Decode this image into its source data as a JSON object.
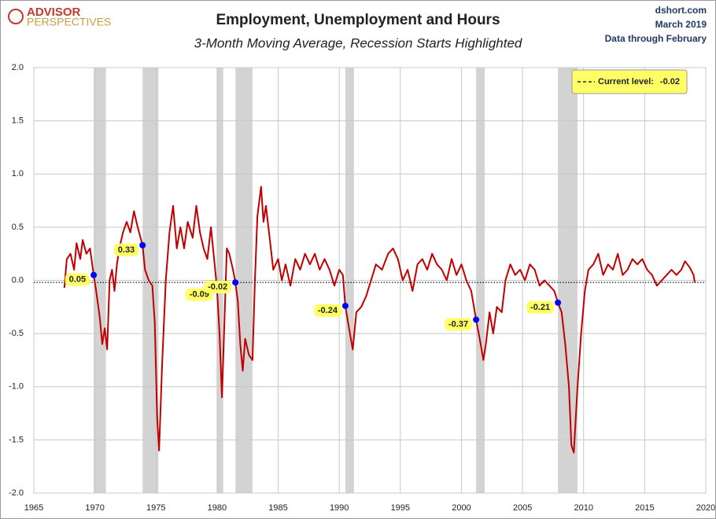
{
  "brand": {
    "line1": "ADVISOR",
    "line2": "PERSPECTIVES"
  },
  "source": [
    "dshort.com",
    "March 2019",
    "Data through February"
  ],
  "chart_data": {
    "type": "line",
    "title": "Employment, Unemployment and Hours",
    "subtitle": "3-Month Moving Average, Recession Starts Highlighted",
    "color": "#c00000",
    "xlim": [
      1965,
      2020
    ],
    "xticks": [
      1965,
      1970,
      1975,
      1980,
      1985,
      1990,
      1995,
      2000,
      2005,
      2010,
      2015,
      2020
    ],
    "ylim": [
      -2,
      2
    ],
    "yticks": [
      {
        "value": 2,
        "label": "2.0"
      },
      1.5,
      {
        "value": 1,
        "label": "1.0"
      },
      0.5,
      {
        "value": 0,
        "label": "0.0"
      },
      -0.5,
      {
        "value": -1,
        "label": "-1.0"
      },
      -1.5,
      {
        "value": -2,
        "label": "-2.0"
      }
    ],
    "grid": true,
    "recessions": [
      [
        1969.9,
        1970.9
      ],
      [
        1973.9,
        1975.2
      ],
      [
        1980.0,
        1980.5
      ],
      [
        1981.5,
        1982.9
      ],
      [
        1990.5,
        1991.2
      ],
      [
        2001.2,
        2001.9
      ],
      [
        2007.9,
        2009.5
      ]
    ],
    "recession_starts": {
      "x": [
        1969.9,
        1973.9,
        1980.0,
        1981.5,
        1990.5,
        2001.2,
        2007.9
      ],
      "values": [
        0.05,
        0.33,
        -0.09,
        -0.02,
        -0.24,
        -0.37,
        -0.21
      ],
      "color": "#0000ff",
      "label_color": "#ffff66"
    },
    "current_level_label": "Current level:",
    "current_level": -0.02,
    "x": [
      1967.5,
      1967.7,
      1968.0,
      1968.3,
      1968.5,
      1968.8,
      1969.0,
      1969.3,
      1969.6,
      1969.9,
      1970.1,
      1970.4,
      1970.6,
      1970.8,
      1971.0,
      1971.2,
      1971.4,
      1971.6,
      1971.8,
      1972.0,
      1972.3,
      1972.6,
      1972.9,
      1973.2,
      1973.5,
      1973.9,
      1974.1,
      1974.4,
      1974.7,
      1974.9,
      1975.1,
      1975.25,
      1975.5,
      1975.8,
      1976.1,
      1976.4,
      1976.7,
      1977.0,
      1977.3,
      1977.6,
      1978.0,
      1978.3,
      1978.6,
      1978.9,
      1979.2,
      1979.5,
      1979.8,
      1980.0,
      1980.2,
      1980.4,
      1980.6,
      1980.8,
      1981.0,
      1981.3,
      1981.5,
      1981.7,
      1981.9,
      1982.1,
      1982.3,
      1982.6,
      1982.9,
      1983.1,
      1983.3,
      1983.6,
      1983.8,
      1984.0,
      1984.3,
      1984.6,
      1985.0,
      1985.3,
      1985.6,
      1986.0,
      1986.4,
      1986.8,
      1987.2,
      1987.6,
      1988.0,
      1988.4,
      1988.8,
      1989.2,
      1989.6,
      1990.0,
      1990.3,
      1990.5,
      1990.8,
      1991.1,
      1991.4,
      1991.8,
      1992.2,
      1992.6,
      1993.0,
      1993.5,
      1994.0,
      1994.4,
      1994.8,
      1995.2,
      1995.6,
      1996.0,
      1996.4,
      1996.8,
      1997.2,
      1997.6,
      1998.0,
      1998.4,
      1998.8,
      1999.2,
      1999.6,
      2000.0,
      2000.4,
      2000.8,
      2001.2,
      2001.5,
      2001.8,
      2002.0,
      2002.3,
      2002.6,
      2002.9,
      2003.3,
      2003.6,
      2004.0,
      2004.4,
      2004.8,
      2005.2,
      2005.6,
      2006.0,
      2006.4,
      2006.8,
      2007.2,
      2007.6,
      2007.9,
      2008.2,
      2008.5,
      2008.8,
      2009.0,
      2009.2,
      2009.5,
      2009.8,
      2010.1,
      2010.4,
      2010.8,
      2011.2,
      2011.6,
      2012.0,
      2012.4,
      2012.8,
      2013.2,
      2013.6,
      2014.0,
      2014.4,
      2014.8,
      2015.2,
      2015.6,
      2016.0,
      2016.4,
      2016.8,
      2017.2,
      2017.6,
      2018.0,
      2018.3,
      2018.7,
      2019.0,
      2019.1
    ],
    "values": [
      -0.07,
      0.2,
      0.25,
      0.1,
      0.35,
      0.2,
      0.38,
      0.25,
      0.3,
      0.05,
      -0.1,
      -0.35,
      -0.6,
      -0.45,
      -0.65,
      0.0,
      0.1,
      -0.1,
      0.15,
      0.3,
      0.45,
      0.55,
      0.45,
      0.65,
      0.5,
      0.33,
      0.1,
      0.0,
      -0.05,
      -0.4,
      -1.3,
      -1.6,
      -0.8,
      0.0,
      0.45,
      0.7,
      0.3,
      0.5,
      0.3,
      0.55,
      0.4,
      0.7,
      0.45,
      0.3,
      0.2,
      0.5,
      0.15,
      -0.09,
      -0.5,
      -1.1,
      -0.4,
      0.3,
      0.25,
      0.1,
      -0.02,
      -0.2,
      -0.6,
      -0.85,
      -0.55,
      -0.7,
      -0.75,
      0.0,
      0.6,
      0.88,
      0.55,
      0.7,
      0.4,
      0.1,
      0.2,
      0.0,
      0.15,
      -0.05,
      0.2,
      0.1,
      0.25,
      0.15,
      0.25,
      0.1,
      0.2,
      0.1,
      -0.05,
      0.1,
      0.05,
      -0.24,
      -0.45,
      -0.65,
      -0.3,
      -0.25,
      -0.15,
      0.0,
      0.15,
      0.1,
      0.25,
      0.3,
      0.2,
      0.0,
      0.1,
      -0.1,
      0.15,
      0.2,
      0.1,
      0.25,
      0.15,
      0.1,
      0.0,
      0.2,
      0.05,
      0.15,
      0.0,
      -0.1,
      -0.37,
      -0.55,
      -0.75,
      -0.6,
      -0.3,
      -0.5,
      -0.25,
      -0.3,
      0.0,
      0.15,
      0.05,
      0.1,
      0.0,
      0.15,
      0.1,
      -0.05,
      0.0,
      -0.05,
      -0.1,
      -0.21,
      -0.3,
      -0.6,
      -1.0,
      -1.55,
      -1.62,
      -1.0,
      -0.5,
      -0.1,
      0.1,
      0.15,
      0.25,
      0.05,
      0.15,
      0.1,
      0.25,
      0.05,
      0.1,
      0.2,
      0.15,
      0.2,
      0.1,
      0.05,
      -0.05,
      0.0,
      0.05,
      0.1,
      0.05,
      0.1,
      0.18,
      0.12,
      0.05,
      -0.02
    ]
  }
}
